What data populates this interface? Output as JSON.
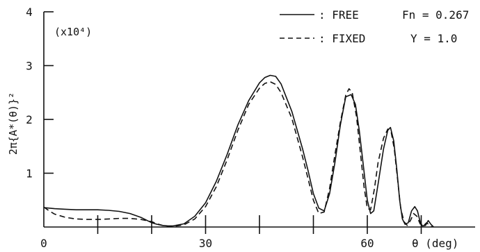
{
  "chart_data": {
    "type": "line",
    "ylabel": "2π{A*(θ)}²",
    "xlabel": "θ (deg)",
    "multiplier": "(x10⁴)",
    "xlim": [
      0,
      80
    ],
    "ylim": [
      0,
      4
    ],
    "x_tick_labels": [
      "0",
      "30",
      "60"
    ],
    "y_tick_labels": [
      "1",
      "2",
      "3",
      "4"
    ],
    "legend_placement": "top-right",
    "grid": false,
    "series": [
      {
        "name": "FREE",
        "legend_label": ": FREE",
        "parameter": "Fn = 0.267",
        "style": "solid",
        "points": [
          [
            0,
            0.36
          ],
          [
            2,
            0.34
          ],
          [
            4,
            0.33
          ],
          [
            6,
            0.32
          ],
          [
            8,
            0.32
          ],
          [
            10,
            0.32
          ],
          [
            12,
            0.31
          ],
          [
            14,
            0.29
          ],
          [
            16,
            0.25
          ],
          [
            18,
            0.18
          ],
          [
            20,
            0.08
          ],
          [
            21,
            0.05
          ],
          [
            22,
            0.03
          ],
          [
            23,
            0.02
          ],
          [
            24,
            0.02
          ],
          [
            26,
            0.06
          ],
          [
            28,
            0.2
          ],
          [
            30,
            0.45
          ],
          [
            32,
            0.85
          ],
          [
            34,
            1.35
          ],
          [
            36,
            1.9
          ],
          [
            38,
            2.35
          ],
          [
            40,
            2.68
          ],
          [
            41,
            2.78
          ],
          [
            42,
            2.82
          ],
          [
            43,
            2.8
          ],
          [
            44,
            2.66
          ],
          [
            46,
            2.15
          ],
          [
            48,
            1.45
          ],
          [
            49,
            1.05
          ],
          [
            50,
            0.62
          ],
          [
            51,
            0.35
          ],
          [
            52,
            0.3
          ],
          [
            53,
            0.62
          ],
          [
            54,
            1.2
          ],
          [
            55,
            1.9
          ],
          [
            56,
            2.42
          ],
          [
            57,
            2.46
          ],
          [
            57.8,
            2.28
          ],
          [
            58.5,
            1.8
          ],
          [
            59.2,
            1.2
          ],
          [
            60,
            0.5
          ],
          [
            60.6,
            0.25
          ],
          [
            61.2,
            0.3
          ],
          [
            62,
            0.8
          ],
          [
            63,
            1.45
          ],
          [
            63.8,
            1.8
          ],
          [
            64.3,
            1.85
          ],
          [
            64.9,
            1.6
          ],
          [
            65.5,
            1.05
          ],
          [
            66,
            0.5
          ],
          [
            66.5,
            0.15
          ],
          [
            67,
            0.05
          ],
          [
            67.6,
            0.08
          ],
          [
            68.2,
            0.3
          ],
          [
            68.8,
            0.38
          ],
          [
            69.3,
            0.3
          ],
          [
            69.8,
            0.1
          ],
          [
            70.2,
            0.02
          ],
          [
            70.8,
            0.03
          ],
          [
            71.3,
            0.12
          ],
          [
            71.8,
            0.05
          ],
          [
            72.3,
            0.0
          ]
        ]
      },
      {
        "name": "FIXED",
        "legend_label": ": FIXED",
        "parameter": "Y = 1.0",
        "style": "dashed",
        "points": [
          [
            0,
            0.37
          ],
          [
            1,
            0.3
          ],
          [
            2,
            0.24
          ],
          [
            4,
            0.18
          ],
          [
            6,
            0.15
          ],
          [
            8,
            0.14
          ],
          [
            10,
            0.14
          ],
          [
            12,
            0.15
          ],
          [
            14,
            0.16
          ],
          [
            16,
            0.16
          ],
          [
            18,
            0.14
          ],
          [
            20,
            0.1
          ],
          [
            21,
            0.06
          ],
          [
            22,
            0.03
          ],
          [
            23,
            0.01
          ],
          [
            24,
            0.01
          ],
          [
            26,
            0.04
          ],
          [
            28,
            0.15
          ],
          [
            30,
            0.38
          ],
          [
            32,
            0.75
          ],
          [
            34,
            1.25
          ],
          [
            36,
            1.8
          ],
          [
            38,
            2.28
          ],
          [
            40,
            2.58
          ],
          [
            41,
            2.67
          ],
          [
            42,
            2.7
          ],
          [
            43,
            2.65
          ],
          [
            44,
            2.5
          ],
          [
            46,
            2.02
          ],
          [
            48,
            1.3
          ],
          [
            49,
            0.9
          ],
          [
            50,
            0.5
          ],
          [
            51,
            0.25
          ],
          [
            52,
            0.28
          ],
          [
            53,
            0.72
          ],
          [
            54,
            1.35
          ],
          [
            55,
            1.95
          ],
          [
            56,
            2.45
          ],
          [
            56.6,
            2.57
          ],
          [
            57.2,
            2.5
          ],
          [
            58,
            2.05
          ],
          [
            58.7,
            1.4
          ],
          [
            59.4,
            0.75
          ],
          [
            60,
            0.35
          ],
          [
            60.6,
            0.32
          ],
          [
            61.3,
            0.7
          ],
          [
            62,
            1.2
          ],
          [
            63,
            1.65
          ],
          [
            63.8,
            1.82
          ],
          [
            64.4,
            1.78
          ],
          [
            65,
            1.45
          ],
          [
            65.6,
            0.9
          ],
          [
            66.2,
            0.35
          ],
          [
            66.8,
            0.1
          ],
          [
            67.4,
            0.03
          ],
          [
            68,
            0.12
          ],
          [
            68.6,
            0.25
          ],
          [
            69.2,
            0.2
          ],
          [
            69.8,
            0.06
          ],
          [
            70.4,
            0.02
          ],
          [
            71,
            0.08
          ],
          [
            71.6,
            0.03
          ],
          [
            72,
            0.0
          ]
        ]
      }
    ]
  }
}
